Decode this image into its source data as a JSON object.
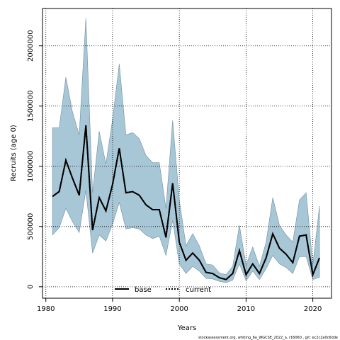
{
  "chart_data": {
    "type": "line",
    "xlabel": "Years",
    "ylabel": "Recruits (age 0)",
    "xlim": [
      1979.5,
      2022.8
    ],
    "ylim": [
      -95000,
      2310000
    ],
    "xticks": [
      1980,
      1990,
      2000,
      2010,
      2020
    ],
    "yticks": [
      0,
      500000,
      1000000,
      1500000,
      2000000
    ],
    "grid": true,
    "legend_position": "bottom-center",
    "footer": "stockassessment.org, whiting_6a_WGCSE_2022_a, r16060 , git: ec2c2a0c6dde",
    "x": [
      1981,
      1982,
      1983,
      1984,
      1985,
      1986,
      1987,
      1988,
      1989,
      1990,
      1991,
      1992,
      1993,
      1994,
      1995,
      1996,
      1997,
      1998,
      1999,
      2000,
      2001,
      2002,
      2003,
      2004,
      2005,
      2006,
      2007,
      2008,
      2009,
      2010,
      2011,
      2012,
      2013,
      2014,
      2015,
      2016,
      2017,
      2018,
      2019,
      2020,
      2021
    ],
    "series": [
      {
        "name": "base",
        "style": "solid",
        "color": "#000000",
        "values": [
          750000,
          790000,
          1050000,
          900000,
          760000,
          1340000,
          470000,
          740000,
          630000,
          850000,
          1150000,
          780000,
          790000,
          760000,
          680000,
          640000,
          640000,
          410000,
          860000,
          370000,
          220000,
          280000,
          220000,
          120000,
          110000,
          75000,
          60000,
          110000,
          300000,
          100000,
          190000,
          110000,
          240000,
          440000,
          320000,
          270000,
          200000,
          420000,
          430000,
          100000,
          240000
        ]
      },
      {
        "name": "current",
        "style": "dotted",
        "color": "#000000",
        "values": [
          750000,
          790000,
          1050000,
          900000,
          760000,
          1340000,
          470000,
          740000,
          630000,
          850000,
          1150000,
          780000,
          790000,
          760000,
          680000,
          640000,
          640000,
          410000,
          860000,
          370000,
          220000,
          280000,
          220000,
          120000,
          110000,
          75000,
          60000,
          110000,
          300000,
          100000,
          190000,
          110000,
          240000,
          440000,
          320000,
          270000,
          200000,
          420000,
          430000,
          100000,
          240000
        ]
      }
    ],
    "band": {
      "color": "#a7c6d6",
      "stroke": "#6f8fa0",
      "lower": [
        430000,
        490000,
        650000,
        540000,
        450000,
        800000,
        280000,
        430000,
        380000,
        520000,
        700000,
        480000,
        490000,
        480000,
        430000,
        400000,
        420000,
        260000,
        550000,
        190000,
        110000,
        170000,
        130000,
        70000,
        65000,
        45000,
        35000,
        55000,
        190000,
        50000,
        130000,
        60000,
        150000,
        260000,
        190000,
        160000,
        110000,
        250000,
        250000,
        60000,
        80000
      ],
      "upper": [
        1320000,
        1320000,
        1740000,
        1450000,
        1260000,
        2230000,
        780000,
        1290000,
        1020000,
        1390000,
        1850000,
        1260000,
        1280000,
        1230000,
        1090000,
        1030000,
        1030000,
        650000,
        1380000,
        720000,
        340000,
        440000,
        340000,
        190000,
        180000,
        115000,
        100000,
        170000,
        510000,
        180000,
        330000,
        170000,
        370000,
        740000,
        510000,
        430000,
        370000,
        720000,
        780000,
        180000,
        670000
      ]
    }
  }
}
